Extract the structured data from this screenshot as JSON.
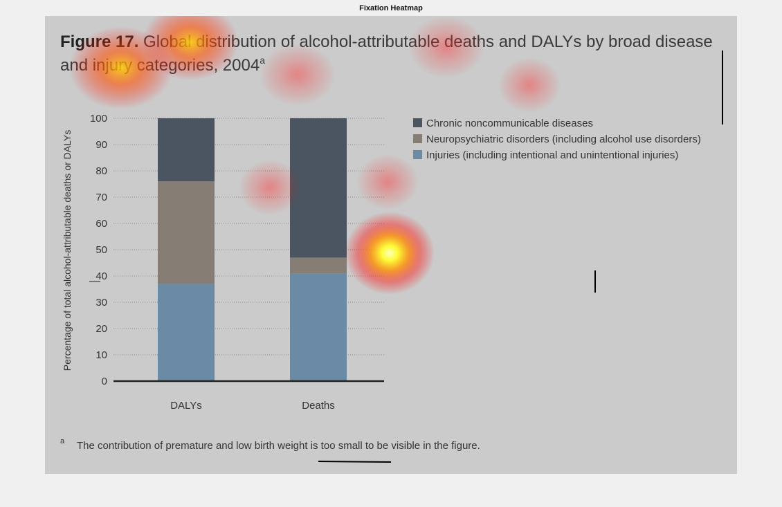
{
  "window_title": "Fixation Heatmap",
  "figure": {
    "number": "Figure 17.",
    "title_line1": " Global distribution of alcohol-attributable deaths and DALYs by broad disease",
    "title_line2": "and injury categories, 2004",
    "title_superscript": "a",
    "footnote_marker": "a",
    "footnote": "The contribution of premature and low birth weight is too small to be visible in the figure."
  },
  "chart_data": {
    "type": "bar",
    "stacked": true,
    "categories": [
      "DALYs",
      "Deaths"
    ],
    "series": [
      {
        "name": "Injuries (including intentional and unintentional injuries)",
        "values": [
          37,
          41
        ],
        "color": "#6a8aa5"
      },
      {
        "name": "Neuropsychiatric disorders (including alcohol use disorders)",
        "values": [
          39,
          6
        ],
        "color": "#867d75"
      },
      {
        "name": "Chronic noncommunicable diseases",
        "values": [
          24,
          53
        ],
        "color": "#4a5561"
      }
    ],
    "ylabel": "Percentage of total alcohol-attributable deaths or DALYs",
    "xlabel": "",
    "ylim": [
      0,
      100
    ],
    "yticks": [
      "0",
      "10",
      "20",
      "30",
      "40",
      "50",
      "60",
      "70",
      "80",
      "90",
      "100"
    ],
    "grid": true,
    "legend_position": "top-right",
    "legend_order": [
      "Chronic noncommunicable diseases",
      "Neuropsychiatric disorders (including alcohol use disorders)",
      "Injuries (including intentional and unintentional injuries)"
    ]
  },
  "colors": {
    "background": "#cbcbcb",
    "chronic": "#4a5561",
    "neuro": "#867d75",
    "injuries": "#6a8aa5",
    "heat_hot": "#ffff60",
    "heat_warm": "#ff2020"
  }
}
